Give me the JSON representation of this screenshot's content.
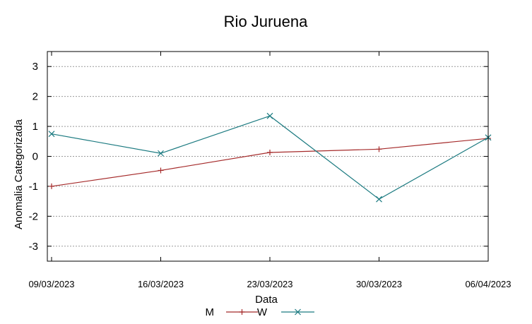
{
  "chart_data": {
    "type": "line",
    "title": "Rio Juruena",
    "xlabel": "Data",
    "ylabel": "Anomalia Categorizada",
    "categories": [
      "09/03/2023",
      "16/03/2023",
      "23/03/2023",
      "30/03/2023",
      "06/04/2023"
    ],
    "ylim": [
      -3.5,
      3.5
    ],
    "yticks": [
      -3,
      -2,
      -1,
      0,
      1,
      2,
      3
    ],
    "grid": true,
    "legend_position": "bottom-center",
    "series": [
      {
        "name": "M",
        "marker": "plus",
        "color": "#a52a2a",
        "values": [
          -1.0,
          -0.47,
          0.13,
          0.24,
          0.6
        ]
      },
      {
        "name": "W",
        "marker": "x",
        "color": "#1b7a80",
        "values": [
          0.75,
          0.1,
          1.35,
          -1.43,
          0.63
        ]
      }
    ]
  }
}
